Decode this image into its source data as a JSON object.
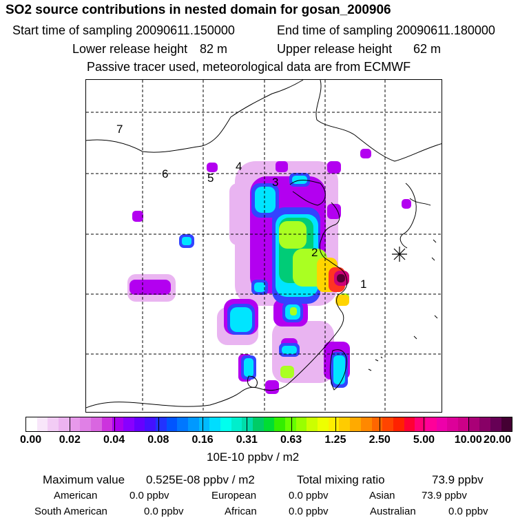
{
  "title": "SO2 source contributions in nested domain for gosan_200906",
  "sampling": {
    "start_label": "Start time of sampling 20090611.150000",
    "end_label": "End time of sampling 20090611.180000"
  },
  "release": {
    "lower_label": "Lower release height",
    "lower_value": "82 m",
    "upper_label": "Upper release height",
    "upper_value": "62 m"
  },
  "note": "Passive tracer used, meteorological data are from ECMWF",
  "regions": [
    "1",
    "2",
    "3",
    "4",
    "5",
    "6",
    "7"
  ],
  "colorbar": {
    "ticks": [
      "0.00",
      "0.02",
      "0.04",
      "0.08",
      "0.16",
      "0.31",
      "0.63",
      "1.25",
      "2.50",
      "5.00",
      "10.00",
      "20.00"
    ],
    "colors": [
      "#ffffff",
      "#f8e6fa",
      "#f2ccf5",
      "#ecb3f0",
      "#e799eb",
      "#e080e6",
      "#d966e0",
      "#cc33dd",
      "#aa00ee",
      "#8800ff",
      "#6600ff",
      "#4411ff",
      "#2233ff",
      "#0055ff",
      "#0077ff",
      "#0099ff",
      "#00bbff",
      "#00ddff",
      "#00ffee",
      "#00eecc",
      "#00ddaa",
      "#00cc66",
      "#00dd33",
      "#33ee00",
      "#66ff00",
      "#99ff00",
      "#ccff00",
      "#eeff00",
      "#ffee00",
      "#ffcc00",
      "#ffaa00",
      "#ff8800",
      "#ff6600",
      "#ff4400",
      "#ff2200",
      "#ff0033",
      "#ff0077",
      "#ff0099",
      "#ee00aa",
      "#dd0099",
      "#cc0088",
      "#aa0077",
      "#880066",
      "#660055",
      "#440033"
    ],
    "unit": "10E-10 ppbv / m2"
  },
  "stats": {
    "max_label": "Maximum value",
    "max_value": "0.525E-08 ppbv / m2",
    "total_label": "Total mixing ratio",
    "total_value": "73.9 ppbv"
  },
  "contributions": {
    "american_label": "American",
    "american_value": "0.0 ppbv",
    "european_label": "European",
    "european_value": "0.0 ppbv",
    "asian_label": "Asian",
    "asian_value": "73.9 ppbv",
    "south_american_label": "South American",
    "south_american_value": "0.0 ppbv",
    "african_label": "African",
    "african_value": "0.0 ppbv",
    "australian_label": "Australian",
    "australian_value": "0.0 ppbv"
  }
}
